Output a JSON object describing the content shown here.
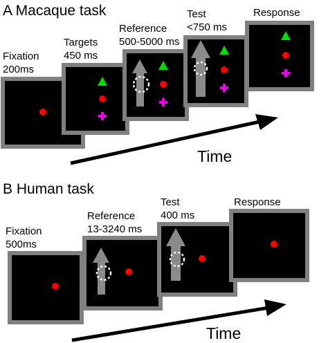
{
  "panels": [
    {
      "title": "A  Macaque task",
      "time_label": "Time",
      "screens": [
        {
          "label": [
            "Fixation",
            "200ms"
          ]
        },
        {
          "label": [
            "Targets",
            "450 ms"
          ]
        },
        {
          "label": [
            "Reference",
            "500-5000 ms"
          ]
        },
        {
          "label": [
            "Test",
            "<750 ms"
          ]
        },
        {
          "label": [
            "Response"
          ]
        }
      ]
    },
    {
      "title": "B  Human task",
      "time_label": "Time",
      "screens": [
        {
          "label": [
            "Fixation",
            "500ms"
          ]
        },
        {
          "label": [
            "Reference",
            "13-3240 ms"
          ]
        },
        {
          "label": [
            "Test",
            "400 ms"
          ]
        },
        {
          "label": [
            "Response"
          ]
        }
      ]
    }
  ]
}
